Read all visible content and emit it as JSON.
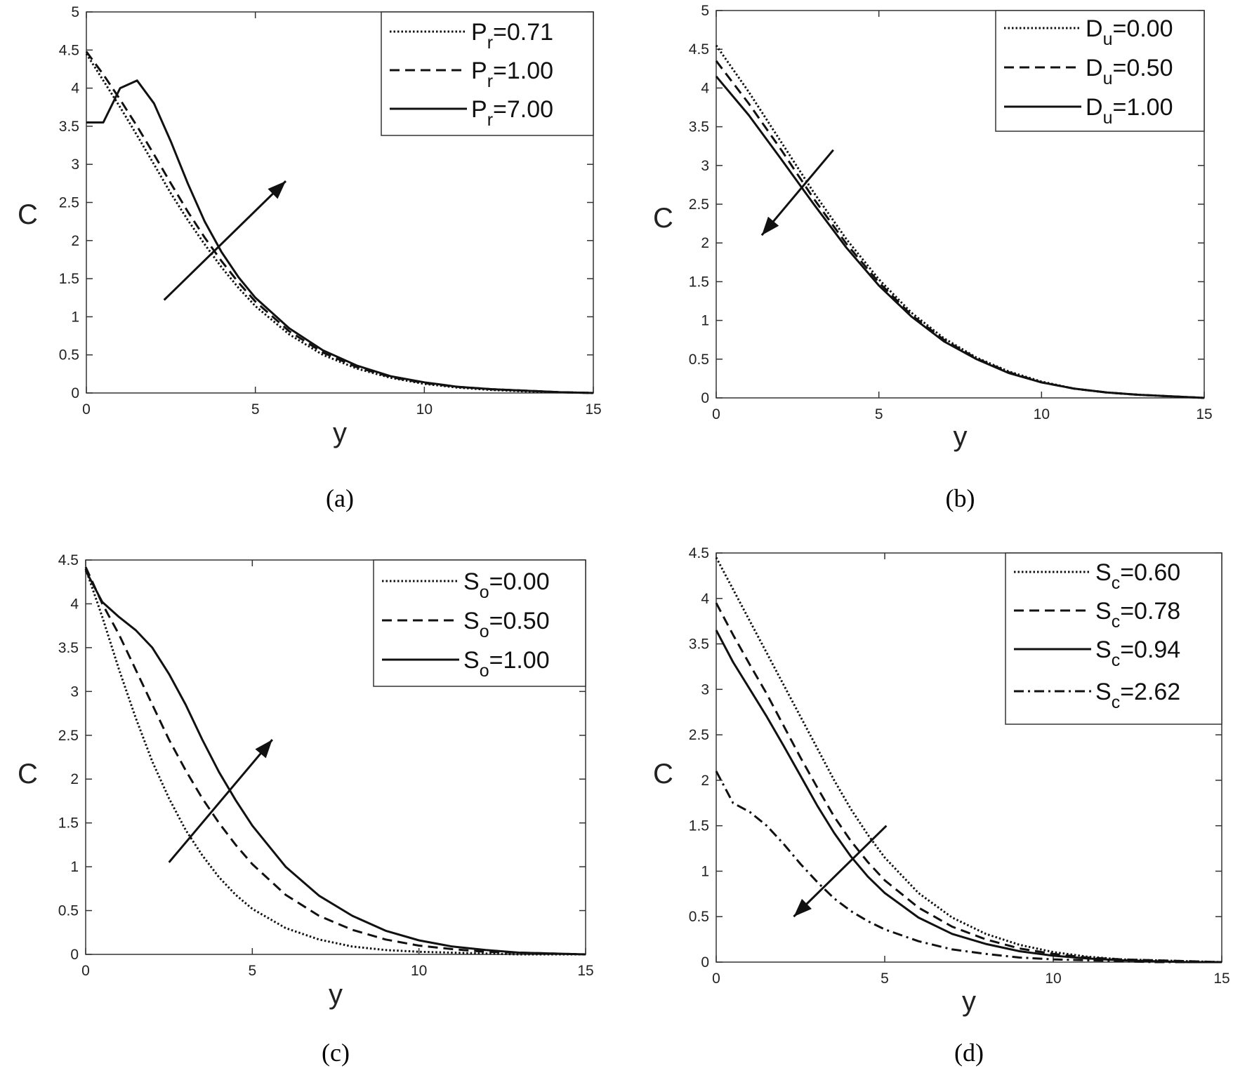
{
  "chart_data": [
    {
      "type": "line",
      "caption": "(a)",
      "xlabel": "y",
      "ylabel": "C",
      "xlim": [
        0,
        15
      ],
      "ylim": [
        0,
        5
      ],
      "xticks": [
        0,
        5,
        10,
        15
      ],
      "yticks": [
        0,
        0.5,
        1,
        1.5,
        2,
        2.5,
        3,
        3.5,
        4,
        4.5,
        5
      ],
      "xtick_labels": [
        "0",
        "5",
        "10",
        "15"
      ],
      "ytick_labels": [
        "0",
        "0.5",
        "1",
        "1.5",
        "2",
        "2.5",
        "3",
        "3.5",
        "4",
        "4.5",
        "5"
      ],
      "grid": false,
      "legend_position": "top-right",
      "arrow": {
        "from": [
          2.3,
          1.22
        ],
        "to": [
          5.9,
          2.78
        ],
        "meaning": "increasing"
      },
      "x": [
        0,
        0.5,
        1,
        1.5,
        2,
        2.5,
        3,
        3.5,
        4,
        4.5,
        5,
        6,
        7,
        8,
        9,
        10,
        11,
        12,
        13,
        14,
        15
      ],
      "series": [
        {
          "name": "P_r=0.71",
          "label_main": "P",
          "label_sub": "r",
          "label_value": "=0.71",
          "style": "dotted",
          "values": [
            4.45,
            4.1,
            3.75,
            3.38,
            3.0,
            2.62,
            2.27,
            1.95,
            1.65,
            1.38,
            1.14,
            0.77,
            0.5,
            0.32,
            0.2,
            0.12,
            0.07,
            0.04,
            0.02,
            0.01,
            0.0
          ]
        },
        {
          "name": "P_r=1.00",
          "label_main": "P",
          "label_sub": "r",
          "label_value": "=1.00",
          "style": "dashed",
          "values": [
            4.48,
            4.18,
            3.85,
            3.5,
            3.13,
            2.75,
            2.38,
            2.04,
            1.73,
            1.45,
            1.2,
            0.81,
            0.53,
            0.34,
            0.21,
            0.13,
            0.08,
            0.05,
            0.03,
            0.01,
            0.0
          ]
        },
        {
          "name": "P_r=7.00",
          "label_main": "P",
          "label_sub": "r",
          "label_value": "=7.00",
          "style": "solid",
          "values": [
            3.55,
            3.55,
            4.0,
            4.1,
            3.8,
            3.3,
            2.75,
            2.25,
            1.85,
            1.52,
            1.25,
            0.85,
            0.56,
            0.36,
            0.22,
            0.14,
            0.08,
            0.05,
            0.03,
            0.01,
            0.0
          ]
        }
      ]
    },
    {
      "type": "line",
      "caption": "(b)",
      "xlabel": "y",
      "ylabel": "C",
      "xlim": [
        0,
        15
      ],
      "ylim": [
        0,
        5
      ],
      "xticks": [
        0,
        5,
        10,
        15
      ],
      "yticks": [
        0,
        0.5,
        1,
        1.5,
        2,
        2.5,
        3,
        3.5,
        4,
        4.5,
        5
      ],
      "xtick_labels": [
        "0",
        "5",
        "10",
        "15"
      ],
      "ytick_labels": [
        "0",
        "0.5",
        "1",
        "1.5",
        "2",
        "2.5",
        "3",
        "3.5",
        "4",
        "4.5",
        "5"
      ],
      "grid": false,
      "legend_position": "top-right",
      "arrow": {
        "from": [
          3.6,
          3.2
        ],
        "to": [
          1.4,
          2.1
        ],
        "meaning": "decreasing"
      },
      "x": [
        0,
        1,
        2,
        3,
        4,
        5,
        6,
        7,
        8,
        9,
        10,
        11,
        12,
        13,
        14,
        15
      ],
      "series": [
        {
          "name": "D_u=0.00",
          "label_main": "D",
          "label_sub": "u",
          "label_value": "=0.00",
          "style": "dotted",
          "values": [
            4.55,
            3.95,
            3.3,
            2.65,
            2.05,
            1.53,
            1.1,
            0.77,
            0.52,
            0.34,
            0.21,
            0.12,
            0.07,
            0.04,
            0.02,
            0.0
          ]
        },
        {
          "name": "D_u=0.50",
          "label_main": "D",
          "label_sub": "u",
          "label_value": "=0.50",
          "style": "dashed",
          "values": [
            4.35,
            3.8,
            3.2,
            2.57,
            1.99,
            1.49,
            1.07,
            0.75,
            0.51,
            0.33,
            0.2,
            0.12,
            0.07,
            0.04,
            0.02,
            0.0
          ]
        },
        {
          "name": "D_u=1.00",
          "label_main": "D",
          "label_sub": "u",
          "label_value": "=1.00",
          "style": "solid",
          "values": [
            4.15,
            3.65,
            3.08,
            2.5,
            1.94,
            1.45,
            1.05,
            0.73,
            0.5,
            0.32,
            0.2,
            0.12,
            0.07,
            0.04,
            0.02,
            0.0
          ]
        }
      ]
    },
    {
      "type": "line",
      "caption": "(c)",
      "xlabel": "y",
      "ylabel": "C",
      "xlim": [
        0,
        15
      ],
      "ylim": [
        0,
        4.5
      ],
      "xticks": [
        0,
        5,
        10,
        15
      ],
      "yticks": [
        0,
        0.5,
        1,
        1.5,
        2,
        2.5,
        3,
        3.5,
        4,
        4.5
      ],
      "xtick_labels": [
        "0",
        "5",
        "10",
        "15"
      ],
      "ytick_labels": [
        "0",
        "0.5",
        "1",
        "1.5",
        "2",
        "2.5",
        "3",
        "3.5",
        "4",
        "4.5"
      ],
      "grid": false,
      "legend_position": "top-right",
      "arrow": {
        "from": [
          2.5,
          1.05
        ],
        "to": [
          5.6,
          2.45
        ],
        "meaning": "increasing"
      },
      "x": [
        0,
        0.5,
        1,
        1.5,
        2,
        2.5,
        3,
        3.5,
        4,
        4.5,
        5,
        6,
        7,
        8,
        9,
        10,
        11,
        12,
        13,
        14,
        15
      ],
      "series": [
        {
          "name": "S_o=0.00",
          "label_main": "S",
          "label_sub": "o",
          "label_value": "=0.00",
          "style": "dotted",
          "values": [
            4.4,
            3.85,
            3.25,
            2.7,
            2.2,
            1.78,
            1.42,
            1.13,
            0.88,
            0.68,
            0.52,
            0.3,
            0.17,
            0.09,
            0.05,
            0.03,
            0.02,
            0.01,
            0.0,
            0.0,
            0.0
          ]
        },
        {
          "name": "S_o=0.50",
          "label_main": "S",
          "label_sub": "o",
          "label_value": "=0.50",
          "style": "dashed",
          "values": [
            4.42,
            4.0,
            3.65,
            3.25,
            2.85,
            2.45,
            2.1,
            1.78,
            1.5,
            1.25,
            1.03,
            0.68,
            0.44,
            0.28,
            0.17,
            0.1,
            0.06,
            0.03,
            0.02,
            0.01,
            0.0
          ]
        },
        {
          "name": "S_o=1.00",
          "label_main": "S",
          "label_sub": "o",
          "label_value": "=1.00",
          "style": "solid",
          "values": [
            4.38,
            4.02,
            3.85,
            3.7,
            3.5,
            3.2,
            2.85,
            2.45,
            2.08,
            1.76,
            1.47,
            1.0,
            0.67,
            0.44,
            0.27,
            0.16,
            0.09,
            0.05,
            0.02,
            0.01,
            0.0
          ]
        }
      ]
    },
    {
      "type": "line",
      "caption": "(d)",
      "xlabel": "y",
      "ylabel": "C",
      "xlim": [
        0,
        15
      ],
      "ylim": [
        0,
        4.5
      ],
      "xticks": [
        0,
        5,
        10,
        15
      ],
      "yticks": [
        0,
        0.5,
        1,
        1.5,
        2,
        2.5,
        3,
        3.5,
        4,
        4.5
      ],
      "xtick_labels": [
        "0",
        "5",
        "10",
        "15"
      ],
      "ytick_labels": [
        "0",
        "0.5",
        "1",
        "1.5",
        "2",
        "2.5",
        "3",
        "3.5",
        "4",
        "4.5"
      ],
      "grid": false,
      "legend_position": "top-right",
      "arrow": {
        "from": [
          5.05,
          1.5
        ],
        "to": [
          2.3,
          0.5
        ],
        "meaning": "decreasing"
      },
      "x": [
        0,
        0.5,
        1,
        1.5,
        2,
        2.5,
        3,
        3.5,
        4,
        4.5,
        5,
        6,
        7,
        8,
        9,
        10,
        11,
        12,
        13,
        14,
        15
      ],
      "series": [
        {
          "name": "S_c=0.60",
          "label_main": "S",
          "label_sub": "c",
          "label_value": "=0.60",
          "style": "dotted",
          "values": [
            4.45,
            4.1,
            3.75,
            3.4,
            3.05,
            2.7,
            2.35,
            2.0,
            1.68,
            1.4,
            1.15,
            0.76,
            0.49,
            0.31,
            0.19,
            0.11,
            0.06,
            0.03,
            0.02,
            0.01,
            0.0
          ]
        },
        {
          "name": "S_c=0.78",
          "label_main": "S",
          "label_sub": "c",
          "label_value": "=0.78",
          "style": "dashed",
          "values": [
            3.95,
            3.6,
            3.27,
            2.95,
            2.6,
            2.25,
            1.92,
            1.6,
            1.33,
            1.1,
            0.9,
            0.6,
            0.39,
            0.25,
            0.15,
            0.09,
            0.05,
            0.03,
            0.02,
            0.01,
            0.0
          ]
        },
        {
          "name": "S_c=0.94",
          "label_main": "S",
          "label_sub": "c",
          "label_value": "=0.94",
          "style": "solid",
          "values": [
            3.65,
            3.3,
            3.0,
            2.7,
            2.38,
            2.05,
            1.72,
            1.42,
            1.16,
            0.94,
            0.76,
            0.49,
            0.31,
            0.2,
            0.12,
            0.07,
            0.04,
            0.02,
            0.01,
            0.0,
            0.0
          ]
        },
        {
          "name": "S_c=2.62",
          "label_main": "S",
          "label_sub": "c",
          "label_value": "=2.62",
          "style": "dashdot",
          "values": [
            2.1,
            1.75,
            1.65,
            1.5,
            1.3,
            1.08,
            0.88,
            0.7,
            0.56,
            0.45,
            0.36,
            0.23,
            0.14,
            0.09,
            0.05,
            0.03,
            0.02,
            0.01,
            0.0,
            0.0,
            0.0
          ]
        }
      ]
    }
  ]
}
